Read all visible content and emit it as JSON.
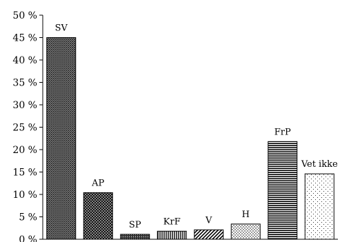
{
  "chart_data": {
    "type": "bar",
    "title": "",
    "xlabel": "",
    "ylabel": "",
    "categories": [
      "SV",
      "AP",
      "SP",
      "KrF",
      "V",
      "H",
      "FrP",
      "Vet ikke"
    ],
    "values": [
      45,
      10.4,
      1.1,
      1.8,
      2.1,
      3.4,
      21.8,
      14.6
    ],
    "ylim": [
      0,
      50
    ],
    "yticks": [
      0,
      5,
      10,
      15,
      20,
      25,
      30,
      35,
      40,
      45,
      50
    ],
    "ytick_labels": [
      "0 %",
      "5 %",
      "10 %",
      "15 %",
      "20 %",
      "25 %",
      "30 %",
      "35 %",
      "40 %",
      "45 %",
      "50 %"
    ],
    "bar_patterns": [
      "dense-crosshatch",
      "crosshatch",
      "dots-dark",
      "vertical-lines",
      "diagonal-lines",
      "sparse-dots",
      "horizontal-lines",
      "fine-dots"
    ],
    "grid": false,
    "legend": "none",
    "colors": {
      "ink": "#000000",
      "background": "#ffffff"
    }
  }
}
